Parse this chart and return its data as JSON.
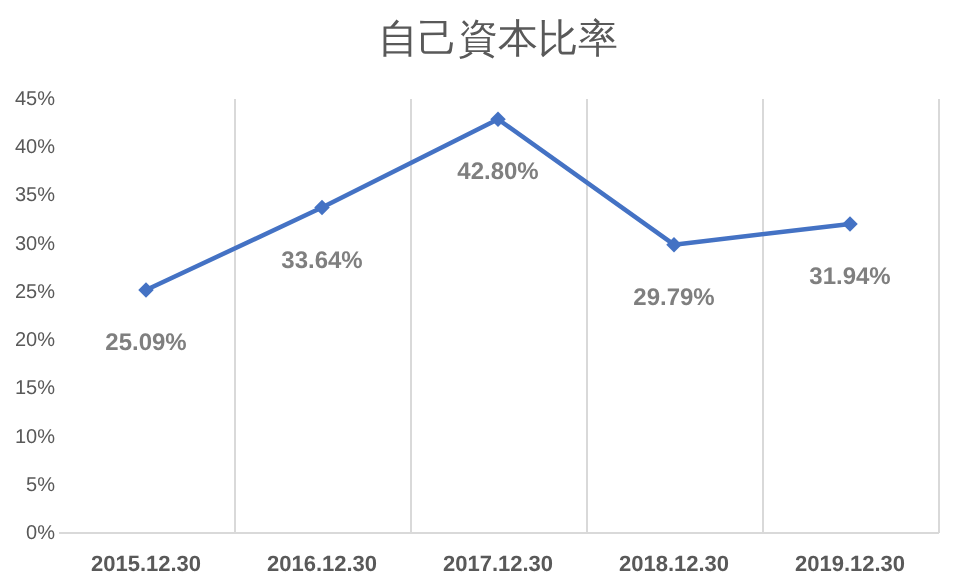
{
  "chart_data": {
    "type": "line",
    "title": "自己資本比率",
    "categories": [
      "2015.12.30",
      "2016.12.30",
      "2017.12.30",
      "2018.12.30",
      "2019.12.30"
    ],
    "series": [
      {
        "color": "#4472c4",
        "values": [
          25.09,
          33.64,
          42.8,
          29.79,
          31.94
        ],
        "value_labels": [
          "25.09%",
          "33.64%",
          "42.80%",
          "29.79%",
          "31.94%"
        ]
      }
    ],
    "ylim": [
      0,
      45
    ],
    "yticks": [
      {
        "value": 0,
        "label": "0%"
      },
      {
        "value": 5,
        "label": "5%"
      },
      {
        "value": 10,
        "label": "10%"
      },
      {
        "value": 15,
        "label": "15%"
      },
      {
        "value": 20,
        "label": "20%"
      },
      {
        "value": 25,
        "label": "25%"
      },
      {
        "value": 30,
        "label": "30%"
      },
      {
        "value": 35,
        "label": "35%"
      },
      {
        "value": 40,
        "label": "40%"
      },
      {
        "value": 45,
        "label": "45%"
      }
    ],
    "grid": "x",
    "marker": "diamond",
    "line_style": "solid"
  }
}
